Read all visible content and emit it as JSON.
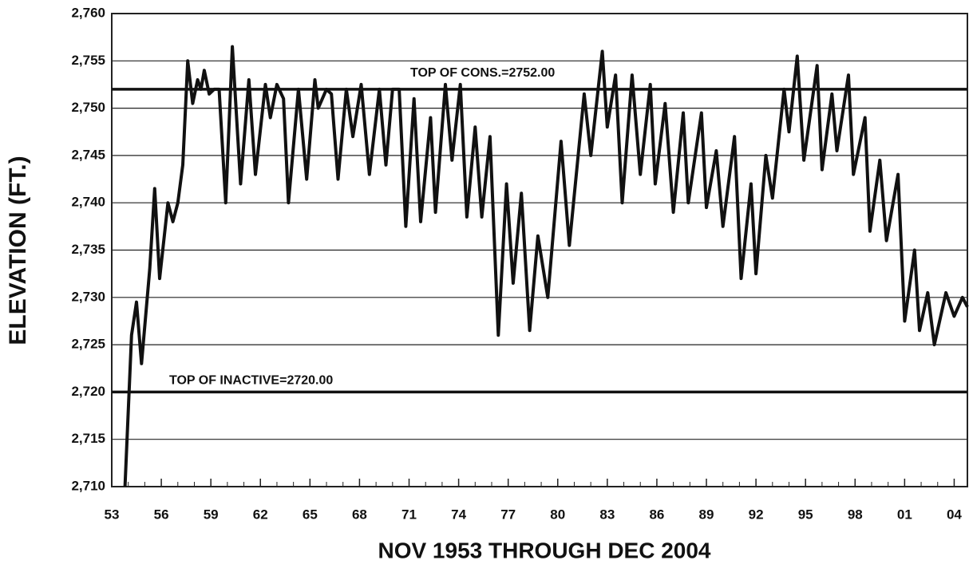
{
  "chart_data": {
    "type": "line",
    "y_label": "ELEVATION (FT.)",
    "x_label": "NOV 1953 THROUGH DEC 2004",
    "xlim": [
      1953,
      2004.8
    ],
    "ylim": [
      2710,
      2760
    ],
    "xticks": [
      {
        "value": 1953,
        "label": "53"
      },
      {
        "value": 1956,
        "label": "56"
      },
      {
        "value": 1959,
        "label": "59"
      },
      {
        "value": 1962,
        "label": "62"
      },
      {
        "value": 1965,
        "label": "65"
      },
      {
        "value": 1968,
        "label": "68"
      },
      {
        "value": 1971,
        "label": "71"
      },
      {
        "value": 1974,
        "label": "74"
      },
      {
        "value": 1977,
        "label": "77"
      },
      {
        "value": 1980,
        "label": "80"
      },
      {
        "value": 1983,
        "label": "83"
      },
      {
        "value": 1986,
        "label": "86"
      },
      {
        "value": 1989,
        "label": "89"
      },
      {
        "value": 1992,
        "label": "92"
      },
      {
        "value": 1995,
        "label": "95"
      },
      {
        "value": 1998,
        "label": "98"
      },
      {
        "value": 2001,
        "label": "01"
      },
      {
        "value": 2004,
        "label": "04"
      }
    ],
    "yticks": [
      {
        "value": 2710,
        "label": "2,710"
      },
      {
        "value": 2715,
        "label": "2,715"
      },
      {
        "value": 2720,
        "label": "2,720"
      },
      {
        "value": 2725,
        "label": "2,725"
      },
      {
        "value": 2730,
        "label": "2,730"
      },
      {
        "value": 2735,
        "label": "2,735"
      },
      {
        "value": 2740,
        "label": "2,740"
      },
      {
        "value": 2745,
        "label": "2,745"
      },
      {
        "value": 2750,
        "label": "2,750"
      },
      {
        "value": 2755,
        "label": "2,755"
      },
      {
        "value": 2760,
        "label": "2,760"
      }
    ],
    "grid": true,
    "reference_lines": [
      {
        "value": 2752,
        "label": "TOP OF CONS.=2752.00"
      },
      {
        "value": 2720,
        "label": "TOP OF INACTIVE=2720.00"
      }
    ],
    "series": [
      {
        "color": "#111111",
        "x": [
          1953.8,
          1954.2,
          1954.5,
          1954.8,
          1955.3,
          1955.6,
          1955.9,
          1956.4,
          1956.7,
          1957.0,
          1957.3,
          1957.6,
          1957.9,
          1958.2,
          1958.4,
          1958.6,
          1958.9,
          1959.2,
          1959.5,
          1959.9,
          1960.3,
          1960.8,
          1961.3,
          1961.7,
          1962.3,
          1962.6,
          1963.0,
          1963.4,
          1963.7,
          1964.3,
          1964.8,
          1965.3,
          1965.5,
          1966.0,
          1966.3,
          1966.7,
          1967.2,
          1967.6,
          1968.1,
          1968.6,
          1969.2,
          1969.6,
          1970.0,
          1970.4,
          1970.8,
          1971.3,
          1971.7,
          1972.3,
          1972.6,
          1973.2,
          1973.6,
          1974.1,
          1974.5,
          1975.0,
          1975.4,
          1975.9,
          1976.4,
          1976.9,
          1977.3,
          1977.8,
          1978.3,
          1978.8,
          1979.4,
          1980.2,
          1980.7,
          1981.6,
          1982.0,
          1982.7,
          1983.0,
          1983.5,
          1983.9,
          1984.5,
          1985.0,
          1985.6,
          1985.9,
          1986.5,
          1987.0,
          1987.6,
          1987.9,
          1988.7,
          1989.0,
          1989.6,
          1990.0,
          1990.7,
          1991.1,
          1991.7,
          1992.0,
          1992.6,
          1993.0,
          1993.7,
          1994.0,
          1994.5,
          1994.9,
          1995.7,
          1996.0,
          1996.6,
          1996.9,
          1997.6,
          1997.9,
          1998.6,
          1998.9,
          1999.5,
          1999.9,
          2000.6,
          2001.0,
          2001.6,
          2001.9,
          2002.4,
          2002.8,
          2003.5,
          2004.0,
          2004.5,
          2004.8
        ],
        "values": [
          2710,
          2726,
          2729.5,
          2723,
          2733,
          2741.5,
          2732,
          2740,
          2738,
          2740,
          2744,
          2755,
          2750.5,
          2753,
          2752,
          2754,
          2751.5,
          2752,
          2752,
          2740,
          2756.5,
          2742,
          2753,
          2743,
          2752.5,
          2749,
          2752.5,
          2751,
          2740,
          2752,
          2742.5,
          2753,
          2750,
          2752,
          2751.5,
          2742.5,
          2752,
          2747,
          2752.5,
          2743,
          2752,
          2744,
          2752,
          2752,
          2737.5,
          2751,
          2738,
          2749,
          2739,
          2752.5,
          2744.5,
          2752.5,
          2738.5,
          2748,
          2738.5,
          2747,
          2726,
          2742,
          2731.5,
          2741,
          2726.5,
          2736.5,
          2730,
          2746.5,
          2735.5,
          2751.5,
          2745,
          2756,
          2748,
          2753.5,
          2740,
          2753.5,
          2743,
          2752.5,
          2742,
          2750.5,
          2739,
          2749.5,
          2740,
          2749.5,
          2739.5,
          2745.5,
          2737.5,
          2747,
          2732,
          2742,
          2732.5,
          2745,
          2740.5,
          2752,
          2747.5,
          2755.5,
          2744.5,
          2754.5,
          2743.5,
          2751.5,
          2745.5,
          2753.5,
          2743,
          2749,
          2737,
          2744.5,
          2736,
          2743,
          2727.5,
          2735,
          2726.5,
          2730.5,
          2725,
          2730.5,
          2728,
          2730,
          2729
        ]
      }
    ]
  }
}
